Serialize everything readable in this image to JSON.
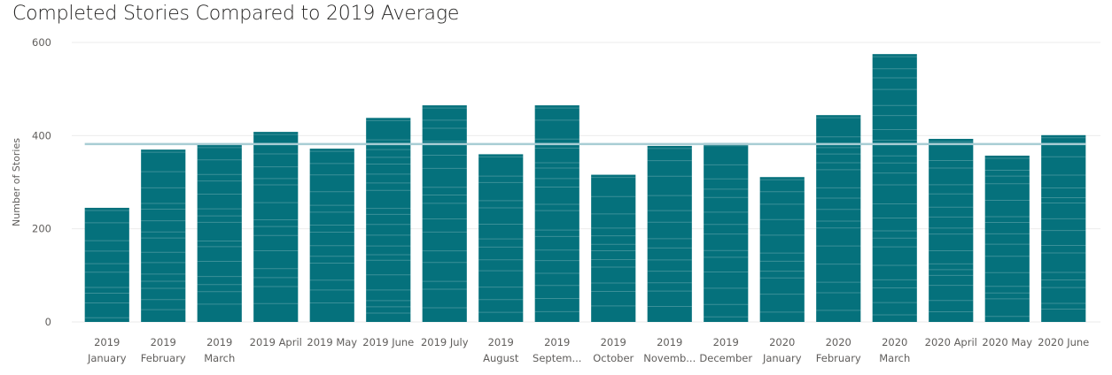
{
  "chart_data": {
    "type": "bar",
    "title": "Completed Stories Compared to 2019 Average",
    "xlabel": "",
    "ylabel": "Number of Stories",
    "ylim": [
      0,
      600
    ],
    "yticks": [
      0,
      200,
      400,
      600
    ],
    "grid": true,
    "categories": [
      [
        "2019",
        "January"
      ],
      [
        "2019",
        "February"
      ],
      [
        "2019",
        "March"
      ],
      [
        "2019 April"
      ],
      [
        "2019 May"
      ],
      [
        "2019 June"
      ],
      [
        "2019 July"
      ],
      [
        "2019",
        "August"
      ],
      [
        "2019",
        "Septem..."
      ],
      [
        "2019",
        "October"
      ],
      [
        "2019",
        "Novemb..."
      ],
      [
        "2019",
        "December"
      ],
      [
        "2020",
        "January"
      ],
      [
        "2020",
        "February"
      ],
      [
        "2020",
        "March"
      ],
      [
        "2020 April"
      ],
      [
        "2020 May"
      ],
      [
        "2020 June"
      ]
    ],
    "values": [
      245,
      370,
      380,
      408,
      372,
      438,
      465,
      360,
      465,
      316,
      378,
      384,
      311,
      444,
      575,
      393,
      357,
      401
    ],
    "reference_line": {
      "value": 382
    },
    "colors": {
      "bar": "#05717c",
      "average_line": "#a8cdd4",
      "grid": "#ebebeb",
      "text": "#605e5c"
    }
  }
}
